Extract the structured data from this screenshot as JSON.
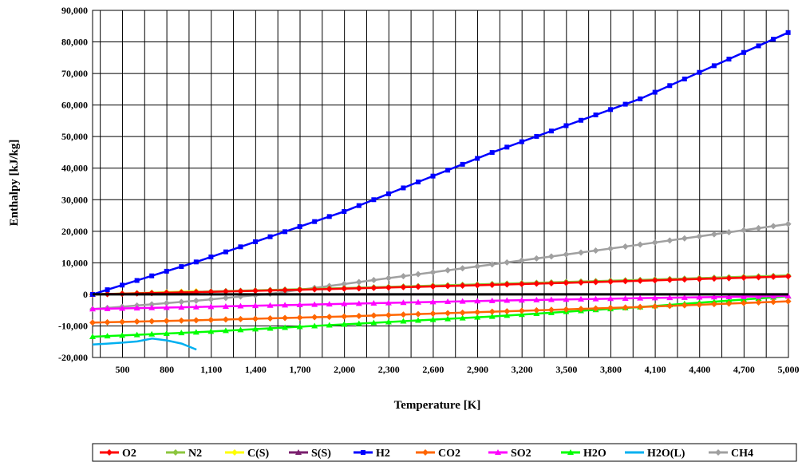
{
  "chart_data": {
    "type": "line",
    "xlabel": "Temperature [K]",
    "ylabel": "Enthalpy [kJ/kg]",
    "xlim": [
      298,
      5000
    ],
    "ylim": [
      -20000,
      90000
    ],
    "x_ticks": [
      "500",
      "800",
      "1,100",
      "1,400",
      "1,700",
      "2,000",
      "2,300",
      "2,600",
      "2,900",
      "3,200",
      "3,500",
      "3,800",
      "4,100",
      "4,400",
      "4,700",
      "5,000"
    ],
    "x_tick_values": [
      500,
      800,
      1100,
      1400,
      1700,
      2000,
      2300,
      2600,
      2900,
      3200,
      3500,
      3800,
      4100,
      4400,
      4700,
      5000
    ],
    "y_ticks": [
      "90,000",
      "80,000",
      "70,000",
      "60,000",
      "50,000",
      "40,000",
      "30,000",
      "20,000",
      "10,000",
      "0",
      "-10,000",
      "-20,000"
    ],
    "y_tick_values": [
      90000,
      80000,
      70000,
      60000,
      50000,
      40000,
      30000,
      20000,
      10000,
      0,
      -10000,
      -20000
    ],
    "grid": true,
    "legend_position": "bottom",
    "series": [
      {
        "name": "O2",
        "color": "#ff0000",
        "marker": "diamond",
        "x": [
          298,
          1000,
          2000,
          3000,
          4000,
          5000
        ],
        "y": [
          0,
          700,
          1800,
          3000,
          4300,
          5700
        ]
      },
      {
        "name": "N2",
        "color": "#8cc63f",
        "marker": "diamond",
        "x": [
          298,
          1000,
          2000,
          3000,
          4000,
          5000
        ],
        "y": [
          0,
          800,
          2000,
          3300,
          4600,
          6000
        ]
      },
      {
        "name": "C(S)",
        "color": "#ffff00",
        "marker": "diamond",
        "x": [
          298,
          600,
          1000
        ],
        "y": [
          0,
          400,
          1000
        ]
      },
      {
        "name": "S(S)",
        "color": "#7a1f6e",
        "marker": "triangle",
        "x": [
          298,
          388
        ],
        "y": [
          0,
          100
        ]
      },
      {
        "name": "H2",
        "color": "#0000ff",
        "marker": "square",
        "x": [
          298,
          1000,
          2000,
          3000,
          4000,
          5000
        ],
        "y": [
          0,
          10300,
          26300,
          45000,
          62000,
          83000
        ]
      },
      {
        "name": "CO2",
        "color": "#ff6600",
        "marker": "diamond",
        "x": [
          298,
          1000,
          2000,
          3000,
          4000,
          5000
        ],
        "y": [
          -8940,
          -8200,
          -7000,
          -5500,
          -4000,
          -2200
        ]
      },
      {
        "name": "SO2",
        "color": "#ff00ff",
        "marker": "triangle",
        "x": [
          298,
          1000,
          2000,
          3000,
          4000,
          5000
        ],
        "y": [
          -4630,
          -4000,
          -3000,
          -2000,
          -1200,
          -500
        ]
      },
      {
        "name": "H2O",
        "color": "#00ff00",
        "marker": "triangle",
        "x": [
          298,
          1000,
          2000,
          3000,
          4000,
          5000
        ],
        "y": [
          -13420,
          -12000,
          -9500,
          -7000,
          -4000,
          -600
        ]
      },
      {
        "name": "H2O(L)",
        "color": "#00b0f0",
        "marker": "none",
        "x": [
          298,
          400,
          500,
          600,
          700,
          800,
          900,
          1000
        ],
        "y": [
          -15900,
          -15600,
          -15300,
          -14900,
          -14000,
          -14600,
          -15600,
          -17500
        ]
      },
      {
        "name": "CH4",
        "color": "#a0a0a0",
        "marker": "diamond",
        "x": [
          298,
          1000,
          1500,
          2000,
          3000,
          4000,
          5000
        ],
        "y": [
          -4660,
          -2000,
          200,
          3300,
          9500,
          15800,
          22300
        ]
      }
    ]
  }
}
